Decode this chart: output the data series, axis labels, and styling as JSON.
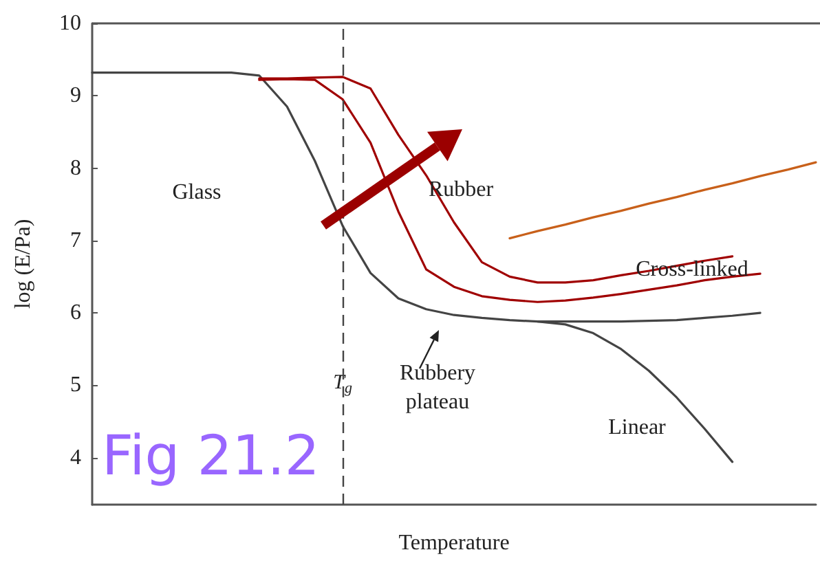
{
  "chart_data": {
    "type": "line",
    "xlabel": "Temperature",
    "ylabel": "log (E/Pa)",
    "categories": [
      null,
      null,
      null,
      null,
      null,
      null,
      null,
      null,
      null,
      "T$_{g}$",
      null,
      null,
      null,
      null,
      null,
      null,
      null,
      null,
      null,
      null,
      null,
      null,
      null,
      null,
      null,
      null,
      null
    ],
    "ylim": [
      3.35,
      10
    ],
    "yticks": [
      4,
      5,
      6,
      7,
      8,
      9,
      10
    ],
    "grid": false,
    "marker": "none",
    "line_style": "solid",
    "series": [
      {
        "color": "#444444",
        "values": [
          9.32,
          9.32,
          9.32,
          9.32,
          9.32,
          9.32,
          9.28,
          8.85,
          8.1,
          7.2,
          6.55,
          6.2,
          6.05,
          5.97,
          5.93,
          5.9,
          5.88,
          5.88,
          5.88,
          5.88,
          5.89,
          5.9,
          5.93,
          5.96,
          6.0,
          null,
          null
        ]
      },
      {
        "color": "#444444",
        "values": [
          null,
          null,
          null,
          null,
          null,
          null,
          null,
          null,
          null,
          null,
          null,
          null,
          null,
          null,
          null,
          null,
          5.88,
          5.84,
          5.72,
          5.5,
          5.2,
          4.83,
          4.4,
          3.94,
          null,
          null,
          null
        ]
      },
      {
        "color": "#a00000",
        "values": [
          null,
          null,
          null,
          null,
          null,
          null,
          9.22,
          9.23,
          9.22,
          8.95,
          8.35,
          7.4,
          6.6,
          6.36,
          6.23,
          6.18,
          6.15,
          6.17,
          6.21,
          6.26,
          6.32,
          6.38,
          6.45,
          6.5,
          6.54,
          null,
          null
        ]
      },
      {
        "color": "#a00000",
        "values": [
          null,
          null,
          null,
          null,
          null,
          null,
          9.24,
          9.24,
          9.25,
          9.26,
          9.1,
          8.46,
          7.9,
          7.25,
          6.7,
          6.5,
          6.42,
          6.42,
          6.45,
          6.52,
          6.58,
          6.65,
          6.72,
          6.78,
          null,
          null,
          null
        ]
      },
      {
        "color": "#c8601a",
        "values": [
          null,
          null,
          null,
          null,
          null,
          null,
          null,
          null,
          null,
          null,
          null,
          null,
          null,
          null,
          null,
          7.03,
          7.13,
          7.22,
          7.32,
          7.41,
          7.51,
          7.6,
          7.7,
          7.79,
          7.89,
          7.98,
          8.08
        ]
      }
    ],
    "ref_lines": [
      {
        "axis": "x",
        "value": "T$_{g}$",
        "color": "#444444",
        "line_style": "dashed"
      }
    ],
    "annotations": [
      "Glass",
      "Rubber",
      "Cross-linked",
      "Rubbery\nplateau",
      "Linear",
      "Fig 21.2"
    ]
  }
}
